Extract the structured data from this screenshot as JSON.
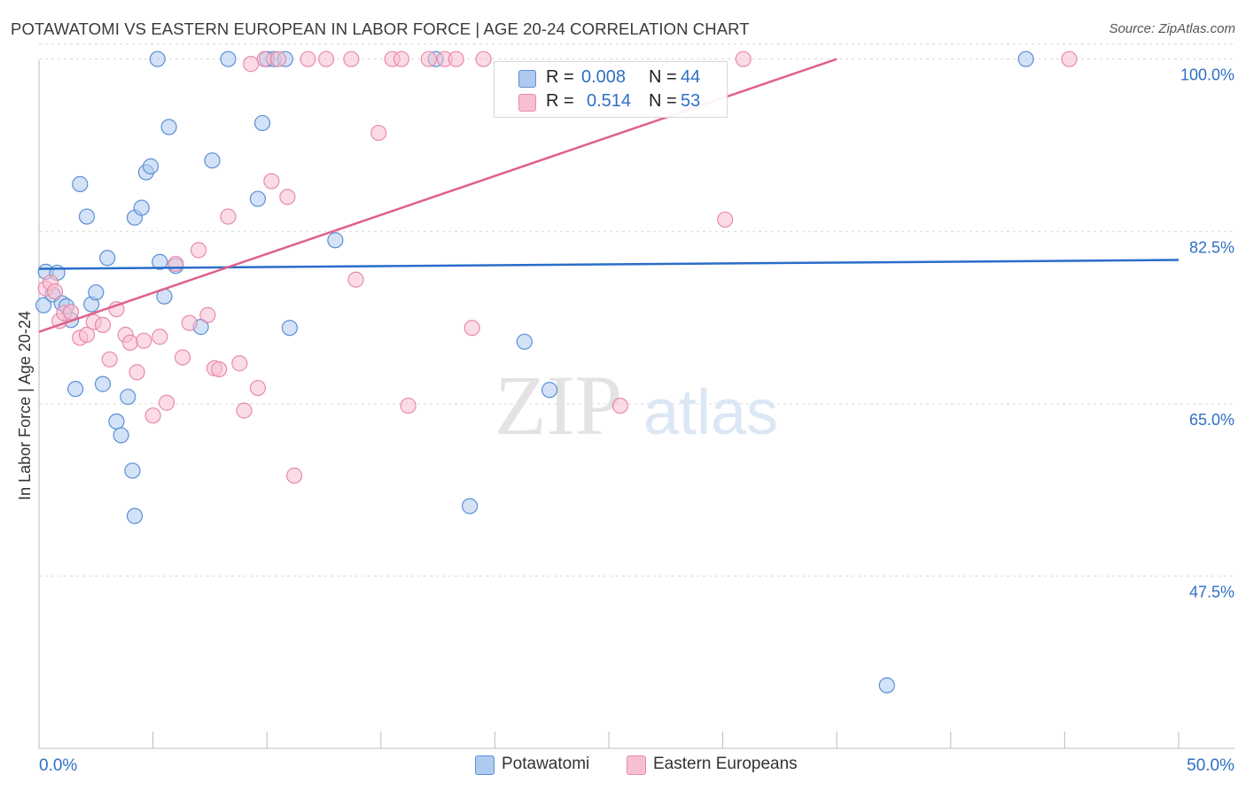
{
  "title": "POTAWATOMI VS EASTERN EUROPEAN IN LABOR FORCE | AGE 20-24 CORRELATION CHART",
  "source": "Source: ZipAtlas.com",
  "watermark": {
    "zip": "ZIP",
    "atlas": "atlas"
  },
  "legend": {
    "r_label": "R =",
    "n_label": "N =",
    "series1": {
      "r": "0.008",
      "n": "44"
    },
    "series2": {
      "r": "0.514",
      "n": "53"
    }
  },
  "colors": {
    "blue_fill": "#aecbef",
    "blue_stroke": "#5b8fd6",
    "blue_line": "#2a6dc9",
    "pink_fill": "#f7c0d2",
    "pink_stroke": "#e88aaa",
    "pink_line": "#e0608a",
    "axis_text": "#2f6fc4",
    "grid": "#d8d8d8"
  },
  "chart_data": {
    "type": "scatter",
    "title": "POTAWATOMI VS EASTERN EUROPEAN IN LABOR FORCE | AGE 20-24 CORRELATION CHART",
    "xlabel": "",
    "ylabel": "In Labor Force | Age 20-24",
    "xlim": [
      0,
      50
    ],
    "ylim": [
      30,
      101.5
    ],
    "x_tick_labels": [
      "0.0%",
      "50.0%"
    ],
    "y_ticks": [
      47.5,
      65.0,
      82.5,
      100.0
    ],
    "y_tick_labels": [
      "47.5%",
      "65.0%",
      "82.5%",
      "100.0%"
    ],
    "grid": true,
    "series": [
      {
        "name": "Potawatomi",
        "color": "#aecbef",
        "trend": {
          "x": [
            0,
            50
          ],
          "y": [
            78.7,
            79.6
          ]
        },
        "points": [
          [
            0.2,
            75.0
          ],
          [
            0.3,
            78.4
          ],
          [
            0.6,
            76.1
          ],
          [
            0.8,
            78.3
          ],
          [
            1.0,
            75.2
          ],
          [
            1.2,
            74.9
          ],
          [
            1.4,
            73.5
          ],
          [
            1.6,
            66.5
          ],
          [
            1.8,
            87.3
          ],
          [
            2.1,
            84.0
          ],
          [
            2.3,
            75.1
          ],
          [
            2.5,
            76.3
          ],
          [
            2.8,
            67.0
          ],
          [
            3.0,
            79.8
          ],
          [
            3.4,
            63.2
          ],
          [
            3.6,
            61.8
          ],
          [
            3.9,
            65.7
          ],
          [
            4.1,
            58.2
          ],
          [
            4.2,
            53.6
          ],
          [
            4.2,
            83.9
          ],
          [
            4.5,
            84.9
          ],
          [
            4.7,
            88.5
          ],
          [
            4.9,
            89.1
          ],
          [
            5.2,
            100.0
          ],
          [
            5.3,
            79.4
          ],
          [
            5.5,
            75.9
          ],
          [
            5.7,
            93.1
          ],
          [
            6.0,
            79.0
          ],
          [
            7.1,
            72.8
          ],
          [
            7.6,
            89.7
          ],
          [
            8.3,
            100.0
          ],
          [
            9.6,
            85.8
          ],
          [
            9.8,
            93.5
          ],
          [
            10.0,
            100.0
          ],
          [
            10.3,
            100.0
          ],
          [
            10.8,
            100.0
          ],
          [
            11.0,
            72.7
          ],
          [
            13.0,
            81.6
          ],
          [
            17.4,
            100.0
          ],
          [
            18.9,
            54.6
          ],
          [
            21.3,
            71.3
          ],
          [
            22.4,
            66.4
          ],
          [
            37.2,
            36.4
          ],
          [
            43.3,
            100.0
          ]
        ]
      },
      {
        "name": "Eastern Europeans",
        "color": "#f7c0d2",
        "trend": {
          "x": [
            0,
            35
          ],
          "y": [
            72.3,
            100.0
          ]
        },
        "points": [
          [
            0.3,
            76.7
          ],
          [
            0.5,
            77.3
          ],
          [
            0.7,
            76.4
          ],
          [
            0.9,
            73.4
          ],
          [
            1.1,
            74.2
          ],
          [
            1.4,
            74.3
          ],
          [
            1.8,
            71.7
          ],
          [
            2.1,
            72.0
          ],
          [
            2.4,
            73.3
          ],
          [
            2.8,
            73.0
          ],
          [
            3.1,
            69.5
          ],
          [
            3.4,
            74.6
          ],
          [
            3.8,
            72.0
          ],
          [
            4.0,
            71.2
          ],
          [
            4.3,
            68.2
          ],
          [
            4.6,
            71.4
          ],
          [
            5.0,
            63.8
          ],
          [
            5.3,
            71.8
          ],
          [
            5.6,
            65.1
          ],
          [
            6.0,
            79.2
          ],
          [
            6.3,
            69.7
          ],
          [
            6.6,
            73.2
          ],
          [
            7.0,
            80.6
          ],
          [
            7.4,
            74.0
          ],
          [
            7.7,
            68.6
          ],
          [
            7.9,
            68.5
          ],
          [
            8.3,
            84.0
          ],
          [
            8.8,
            69.1
          ],
          [
            9.0,
            64.3
          ],
          [
            9.3,
            99.5
          ],
          [
            9.6,
            66.6
          ],
          [
            9.9,
            100.0
          ],
          [
            10.2,
            87.6
          ],
          [
            10.5,
            100.0
          ],
          [
            10.9,
            86.0
          ],
          [
            11.2,
            57.7
          ],
          [
            11.8,
            100.0
          ],
          [
            12.6,
            100.0
          ],
          [
            13.7,
            100.0
          ],
          [
            13.9,
            77.6
          ],
          [
            14.9,
            92.5
          ],
          [
            15.5,
            100.0
          ],
          [
            15.9,
            100.0
          ],
          [
            16.2,
            64.8
          ],
          [
            17.1,
            100.0
          ],
          [
            17.8,
            100.0
          ],
          [
            18.3,
            100.0
          ],
          [
            19.0,
            72.7
          ],
          [
            19.5,
            100.0
          ],
          [
            25.5,
            64.8
          ],
          [
            30.1,
            83.7
          ],
          [
            30.9,
            100.0
          ],
          [
            45.2,
            100.0
          ]
        ]
      }
    ]
  }
}
